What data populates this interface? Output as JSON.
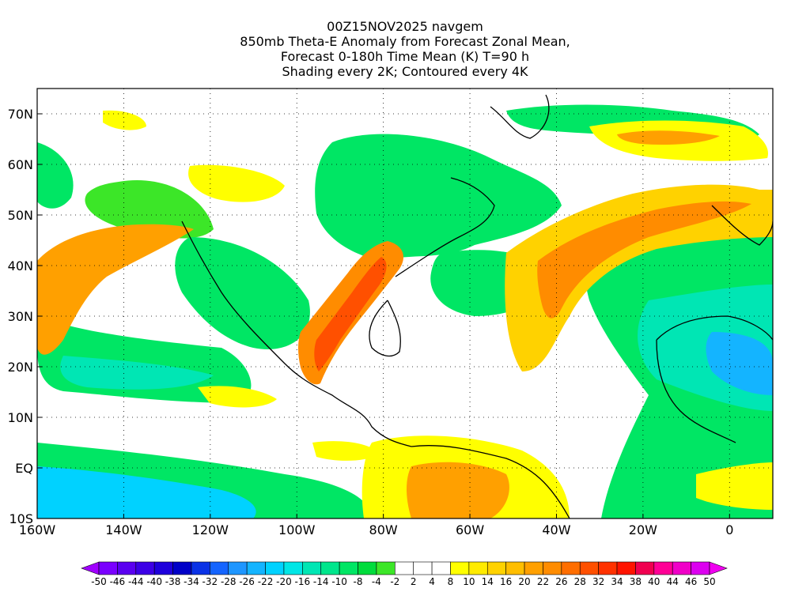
{
  "header": {
    "line1": "00Z15NOV2025 navgem",
    "line2": "850mb Theta-E Anomaly from Forecast Zonal Mean,",
    "line3": "Forecast 0-180h Time Mean (K) T=90 h",
    "line4": "Shading every 2K; Contoured every 4K"
  },
  "map": {
    "projection": "cylindrical-equidistant",
    "lon_range": [
      -160,
      10
    ],
    "lat_range": [
      -10,
      75
    ],
    "lon_ticks": [
      "160W",
      "140W",
      "120W",
      "100W",
      "80W",
      "60W",
      "40W",
      "20W",
      "0"
    ],
    "lat_ticks": [
      "70N",
      "60N",
      "50N",
      "40N",
      "30N",
      "20N",
      "10N",
      "EQ",
      "10S"
    ],
    "gridlines": "dotted"
  },
  "colorbar": {
    "labels": [
      "-50",
      "-46",
      "-44",
      "-40",
      "-38",
      "-34",
      "-32",
      "-28",
      "-26",
      "-22",
      "-20",
      "-16",
      "-14",
      "-10",
      "-8",
      "-4",
      "-2",
      "2",
      "4",
      "8",
      "10",
      "14",
      "16",
      "20",
      "22",
      "26",
      "28",
      "32",
      "34",
      "38",
      "40",
      "44",
      "46",
      "50"
    ],
    "colors": [
      "#a000ff",
      "#7a00ff",
      "#5a00f0",
      "#3c00e6",
      "#1e00dc",
      "#0000c8",
      "#0a32e6",
      "#1464ff",
      "#1e96ff",
      "#14b4ff",
      "#00d2ff",
      "#00e6e6",
      "#00e6b4",
      "#00e68c",
      "#00e664",
      "#00dc3c",
      "#3ce628",
      "#ffffff",
      "#ffffff",
      "#ffffff",
      "#ffff00",
      "#ffeb00",
      "#ffd200",
      "#ffbe00",
      "#ffa000",
      "#ff8c00",
      "#ff6e00",
      "#ff5000",
      "#ff3200",
      "#ff1400",
      "#f00050",
      "#ff0096",
      "#f000c8",
      "#dc00f0",
      "#f000f0"
    ]
  }
}
